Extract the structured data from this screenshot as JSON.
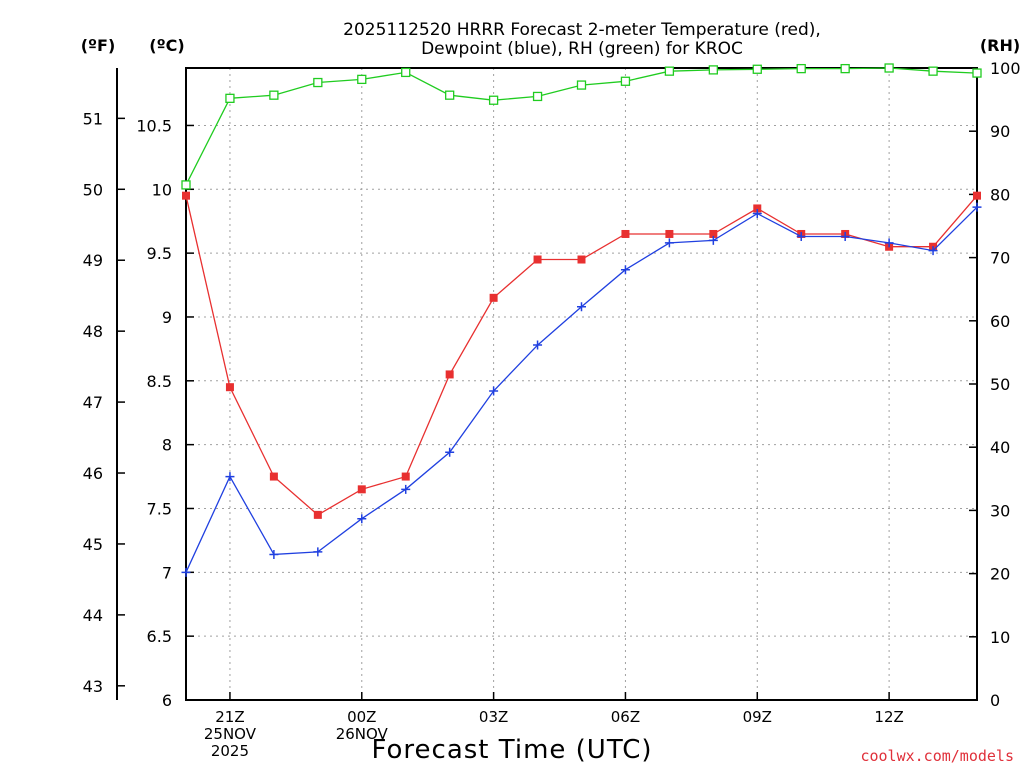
{
  "chart_data": {
    "type": "line",
    "title": "2025112520 HRRR Forecast 2-meter Temperature (red),",
    "subtitle": "Dewpoint (blue), RH (green) for KROC",
    "xlabel": "Forecast Time (UTC)",
    "axis_headers": {
      "fahrenheit": "(ºF)",
      "celsius": "(ºC)",
      "rh": "(RH)"
    },
    "credit": "coolwx.com/models",
    "x": [
      20,
      21,
      22,
      23,
      24,
      25,
      26,
      27,
      28,
      29,
      30,
      31,
      32,
      33,
      34,
      35,
      36,
      37,
      38
    ],
    "xlim": [
      20,
      38
    ],
    "x_ticks": [
      {
        "x": 21,
        "lines": [
          "21Z",
          "25NOV",
          "2025"
        ]
      },
      {
        "x": 24,
        "lines": [
          "00Z",
          "26NOV"
        ]
      },
      {
        "x": 27,
        "lines": [
          "03Z"
        ]
      },
      {
        "x": 30,
        "lines": [
          "06Z"
        ]
      },
      {
        "x": 33,
        "lines": [
          "09Z"
        ]
      },
      {
        "x": 36,
        "lines": [
          "12Z"
        ]
      }
    ],
    "y_celsius": {
      "lim": [
        6,
        10.95
      ],
      "ticks": [
        6,
        6.5,
        7,
        7.5,
        8,
        8.5,
        9,
        9.5,
        10,
        10.5
      ],
      "tick_labels": [
        "6",
        "6.5",
        "7",
        "7.5",
        "8",
        "8.5",
        "9",
        "9.5",
        "10",
        "10.5"
      ]
    },
    "y_fahrenheit": {
      "ticks": [
        43,
        44,
        45,
        46,
        47,
        48,
        49,
        50,
        51
      ],
      "tick_labels": [
        "43",
        "44",
        "45",
        "46",
        "47",
        "48",
        "49",
        "50",
        "51"
      ]
    },
    "y_rh": {
      "lim": [
        0,
        100
      ],
      "ticks": [
        0,
        10,
        20,
        30,
        40,
        50,
        60,
        70,
        80,
        90,
        100
      ],
      "tick_labels": [
        "0",
        "10",
        "20",
        "30",
        "40",
        "50",
        "60",
        "70",
        "80",
        "90",
        "100"
      ]
    },
    "series": [
      {
        "name": "Temperature",
        "axis": "celsius",
        "color": "#e83030",
        "marker": "filled-square",
        "values": [
          9.95,
          8.45,
          7.75,
          7.45,
          7.65,
          7.75,
          8.55,
          9.15,
          9.45,
          9.45,
          9.65,
          9.65,
          9.65,
          9.85,
          9.65,
          9.65,
          9.55,
          9.55,
          9.95
        ]
      },
      {
        "name": "Dewpoint",
        "axis": "celsius",
        "color": "#2040e0",
        "marker": "plus",
        "values": [
          7.0,
          7.75,
          7.14,
          7.16,
          7.42,
          7.65,
          7.94,
          8.42,
          8.78,
          9.08,
          9.37,
          9.58,
          9.6,
          9.81,
          9.63,
          9.63,
          9.58,
          9.52,
          9.86
        ]
      },
      {
        "name": "RH",
        "axis": "rh",
        "color": "#20cc20",
        "marker": "open-square",
        "values": [
          81.5,
          95.2,
          95.7,
          97.7,
          98.2,
          99.3,
          95.7,
          94.9,
          95.5,
          97.3,
          97.9,
          99.5,
          99.7,
          99.8,
          99.9,
          99.9,
          100.0,
          99.5,
          99.2
        ]
      }
    ]
  }
}
